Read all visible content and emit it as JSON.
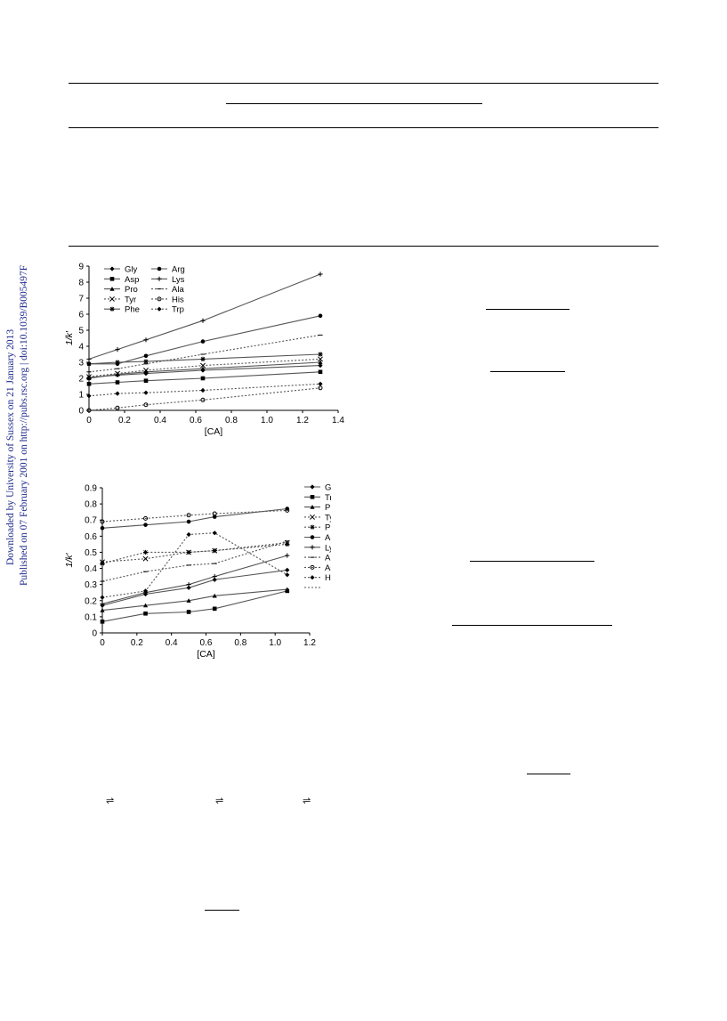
{
  "sidebar": {
    "download_note": "Downloaded by University of Sussex on 21 January 2013",
    "publish_note": "Published on 07 February 2001 on http://pubs.rsc.org | doi:10.1039/B005497F",
    "color": "#1f2a8c"
  },
  "equilibrium_arrows": [
    "⇌",
    "⇌",
    "⇌"
  ],
  "chart_data": [
    {
      "type": "line",
      "xlabel": "[CA]",
      "ylabel": "1/k′",
      "xlim": [
        0,
        1.4
      ],
      "ylim": [
        0,
        9
      ],
      "xticks": [
        "0",
        "0.2",
        "0.4",
        "0.6",
        "0.8",
        "1.0",
        "1.2",
        "1.4"
      ],
      "yticks": [
        "0",
        "1",
        "2",
        "3",
        "4",
        "5",
        "6",
        "7",
        "8",
        "9"
      ],
      "x": [
        0,
        0.16,
        0.32,
        0.64,
        1.3
      ],
      "legend_position": "top-left, two columns",
      "series": [
        {
          "name": "Gly",
          "marker": "diamond",
          "dashed": false,
          "values": [
            2.05,
            2.2,
            2.3,
            2.5,
            2.8
          ]
        },
        {
          "name": "Asp",
          "marker": "square",
          "dashed": false,
          "values": [
            1.65,
            1.75,
            1.85,
            2.0,
            2.4
          ]
        },
        {
          "name": "Pro",
          "marker": "triangle",
          "dashed": false,
          "values": [
            2.0,
            2.25,
            2.4,
            2.6,
            3.0
          ]
        },
        {
          "name": "Tyr",
          "marker": "x",
          "dashed": true,
          "values": [
            2.1,
            2.3,
            2.5,
            2.8,
            3.2
          ]
        },
        {
          "name": "Phe",
          "marker": "asterisk",
          "dashed": false,
          "values": [
            2.9,
            3.0,
            3.05,
            3.2,
            3.5
          ]
        },
        {
          "name": "Arg",
          "marker": "circle",
          "dashed": false,
          "values": [
            2.9,
            2.9,
            3.4,
            4.3,
            5.9
          ]
        },
        {
          "name": "Lys",
          "marker": "plus",
          "dashed": false,
          "values": [
            3.2,
            3.8,
            4.4,
            5.6,
            8.5
          ]
        },
        {
          "name": "Ala",
          "marker": "dash",
          "dashed": true,
          "values": [
            2.4,
            2.6,
            2.9,
            3.5,
            4.7
          ]
        },
        {
          "name": "His",
          "marker": "circle-open",
          "dashed": true,
          "values": [
            0.0,
            0.15,
            0.35,
            0.65,
            1.4
          ]
        },
        {
          "name": "Trp",
          "marker": "diamond",
          "dashed": true,
          "values": [
            0.9,
            1.05,
            1.1,
            1.25,
            1.65
          ]
        }
      ]
    },
    {
      "type": "line",
      "xlabel": "[CA]",
      "ylabel": "1/k′",
      "xlim": [
        0,
        1.2
      ],
      "ylim": [
        0,
        0.9
      ],
      "xticks": [
        "0",
        "0.2",
        "0.4",
        "0.6",
        "0.8",
        "1.0",
        "1.2"
      ],
      "yticks": [
        "0",
        "0.1",
        "0.2",
        "0.3",
        "0.4",
        "0.5",
        "0.6",
        "0.7",
        "0.8",
        "0.9"
      ],
      "x": [
        0,
        0.25,
        0.5,
        0.65,
        1.07
      ],
      "legend_position": "right",
      "series": [
        {
          "name": "Gly",
          "marker": "diamond",
          "dashed": false,
          "values": [
            0.17,
            0.24,
            0.28,
            0.33,
            0.39
          ]
        },
        {
          "name": "Trp",
          "marker": "square",
          "dashed": false,
          "values": [
            0.07,
            0.12,
            0.13,
            0.15,
            0.26
          ]
        },
        {
          "name": "Pro",
          "marker": "triangle",
          "dashed": false,
          "values": [
            0.14,
            0.17,
            0.2,
            0.23,
            0.27
          ]
        },
        {
          "name": "Tyr",
          "marker": "x",
          "dashed": true,
          "values": [
            0.44,
            0.46,
            0.5,
            0.51,
            0.56
          ]
        },
        {
          "name": "Phe",
          "marker": "asterisk",
          "dashed": true,
          "values": [
            0.43,
            0.5,
            0.5,
            0.51,
            0.55
          ]
        },
        {
          "name": "Arg",
          "marker": "circle",
          "dashed": false,
          "values": [
            0.65,
            0.67,
            0.69,
            0.72,
            0.77
          ]
        },
        {
          "name": "Lys",
          "marker": "plus",
          "dashed": false,
          "values": [
            0.18,
            0.25,
            0.3,
            0.35,
            0.48
          ]
        },
        {
          "name": "Ala",
          "marker": "dash",
          "dashed": true,
          "values": [
            0.32,
            0.38,
            0.42,
            0.43,
            0.57
          ]
        },
        {
          "name": "Asp",
          "marker": "circle-open",
          "dashed": true,
          "values": [
            0.69,
            0.71,
            0.73,
            0.74,
            0.76
          ]
        },
        {
          "name": "His",
          "marker": "diamond",
          "dashed": true,
          "values": [
            0.22,
            0.26,
            0.61,
            0.62,
            0.36
          ]
        }
      ]
    }
  ]
}
